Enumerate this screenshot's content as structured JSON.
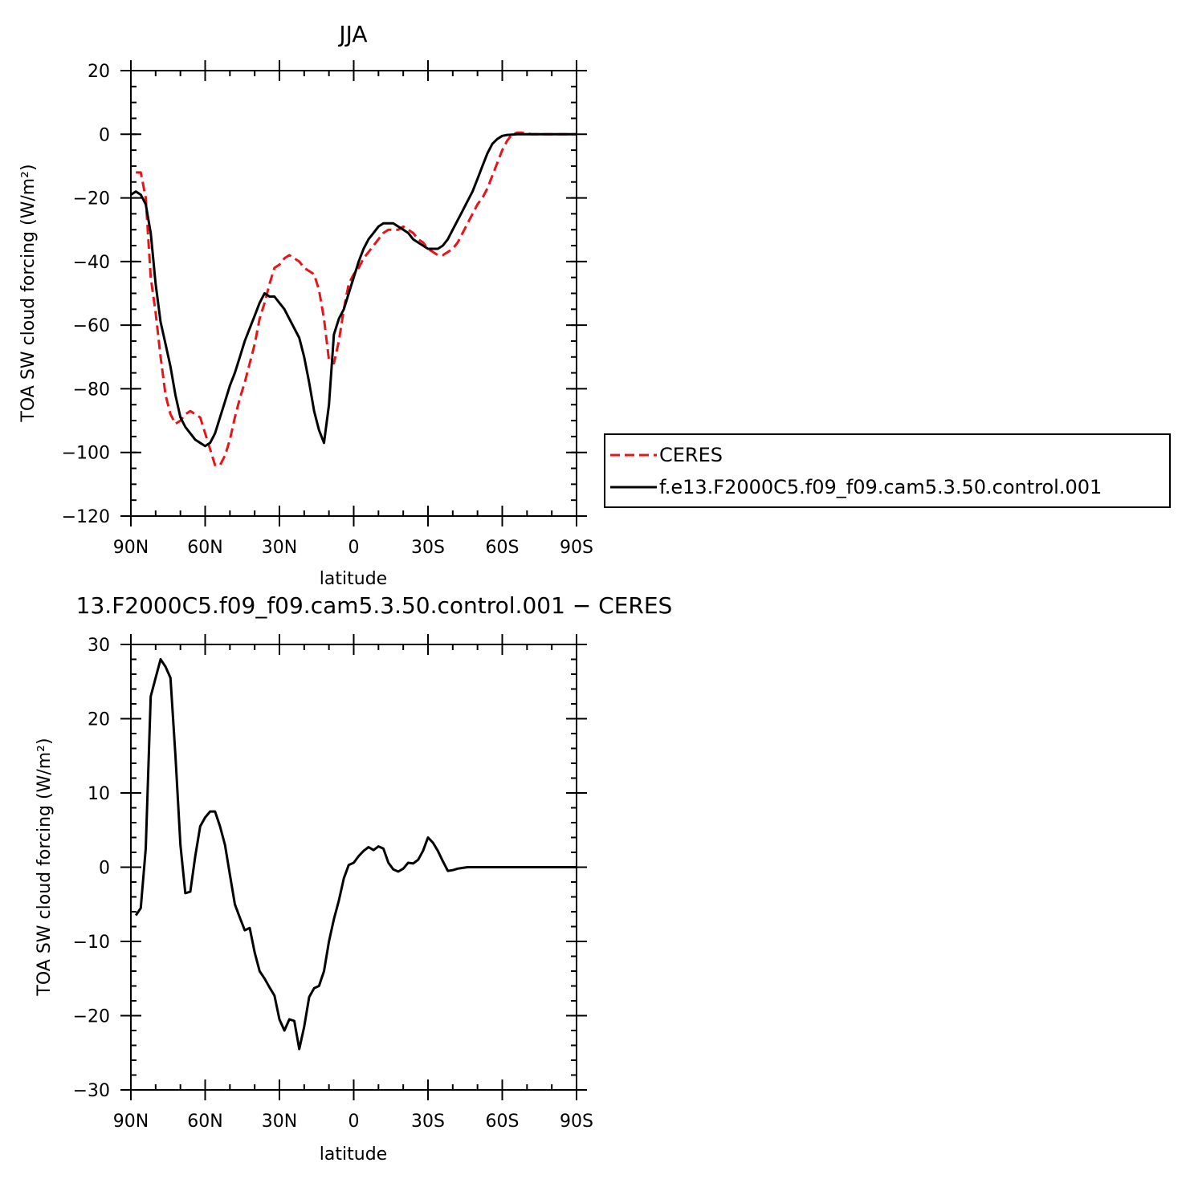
{
  "chart_data": [
    {
      "type": "line",
      "title": "JJA",
      "xlabel": "latitude",
      "ylabel": "TOA SW cloud forcing (W/m²)",
      "xlim": [
        -90,
        90
      ],
      "ylim": [
        -120,
        20
      ],
      "x_ticks": [
        -90,
        -60,
        -30,
        0,
        30,
        60,
        90
      ],
      "x_tick_labels": [
        "90N",
        "60N",
        "30N",
        "0",
        "30S",
        "60S",
        "90S"
      ],
      "y_ticks": [
        -120,
        -100,
        -80,
        -60,
        -40,
        -20,
        0,
        20
      ],
      "y_tick_labels": [
        "−120",
        "−100",
        "−80",
        "−60",
        "−40",
        "−20",
        "0",
        "20"
      ],
      "grid": false,
      "legend_position": "right",
      "series": [
        {
          "name": "CERES",
          "color": "#e8141a",
          "dash": "dashed",
          "x": [
            -88,
            -86,
            -84,
            -82,
            -80,
            -78,
            -76,
            -74,
            -72,
            -70,
            -68,
            -66,
            -64,
            -62,
            -60,
            -58,
            -56,
            -54,
            -52,
            -50,
            -48,
            -46,
            -44,
            -42,
            -40,
            -38,
            -36,
            -34,
            -32,
            -30,
            -28,
            -26,
            -24,
            -22,
            -20,
            -18,
            -16,
            -14,
            -12,
            -10,
            -8,
            -6,
            -4,
            -2,
            0,
            2,
            4,
            6,
            8,
            10,
            12,
            14,
            16,
            18,
            20,
            22,
            24,
            26,
            28,
            30,
            32,
            34,
            36,
            38,
            40,
            42,
            44,
            46,
            48,
            50,
            52,
            54,
            56,
            58,
            60,
            62,
            64,
            66,
            68,
            70,
            72,
            74,
            76,
            78,
            80,
            82,
            84,
            86,
            88,
            90
          ],
          "y": [
            -12,
            -12,
            -20,
            -45,
            -56,
            -70,
            -82,
            -88,
            -91,
            -90,
            -88,
            -87,
            -88,
            -89,
            -94,
            -99,
            -104,
            -104,
            -101,
            -96,
            -89,
            -83,
            -78,
            -72,
            -66,
            -58,
            -53,
            -47,
            -42,
            -41,
            -39,
            -38,
            -39,
            -40,
            -42,
            -43,
            -44,
            -49,
            -58,
            -71,
            -72,
            -65,
            -55,
            -47,
            -44,
            -42,
            -39,
            -37,
            -35,
            -33,
            -31,
            -30,
            -30,
            -30,
            -29,
            -30,
            -31,
            -33,
            -34,
            -36,
            -37,
            -38,
            -38,
            -37,
            -36,
            -34,
            -31,
            -28,
            -25,
            -22,
            -20,
            -17,
            -13,
            -9,
            -5,
            -2,
            0,
            0.5,
            0.5,
            0.3,
            0,
            0,
            0,
            0,
            0,
            0,
            0,
            0,
            0,
            0
          ]
        },
        {
          "name": "f.e13.F2000C5.f09_f09.cam5.3.50.control.001",
          "color": "#000000",
          "dash": "solid",
          "x": [
            -90,
            -88,
            -86,
            -84,
            -82,
            -80,
            -78,
            -76,
            -74,
            -72,
            -70,
            -68,
            -66,
            -64,
            -62,
            -60,
            -58,
            -56,
            -54,
            -52,
            -50,
            -48,
            -46,
            -44,
            -42,
            -40,
            -38,
            -36,
            -34,
            -32,
            -30,
            -28,
            -26,
            -24,
            -22,
            -20,
            -18,
            -16,
            -14,
            -12,
            -10,
            -8,
            -6,
            -4,
            -2,
            0,
            2,
            4,
            6,
            8,
            10,
            12,
            14,
            16,
            18,
            20,
            22,
            24,
            26,
            28,
            30,
            32,
            34,
            36,
            38,
            40,
            42,
            44,
            46,
            48,
            50,
            52,
            54,
            56,
            58,
            60,
            62,
            64,
            66,
            68,
            70,
            72,
            74,
            76,
            78,
            80,
            82,
            84,
            86,
            88,
            90
          ],
          "y": [
            -19,
            -18,
            -19,
            -22,
            -31,
            -47,
            -59,
            -66,
            -73,
            -82,
            -89,
            -92,
            -94,
            -96,
            -97,
            -98,
            -97,
            -94,
            -89,
            -84,
            -79,
            -75,
            -70,
            -65,
            -61,
            -57,
            -53,
            -50,
            -51,
            -51,
            -53,
            -55,
            -58,
            -61,
            -64,
            -70,
            -78,
            -87,
            -93,
            -97,
            -85,
            -63,
            -58,
            -55,
            -50,
            -45,
            -40,
            -36,
            -33,
            -31,
            -29,
            -28,
            -28,
            -28,
            -29,
            -30,
            -31,
            -33,
            -34,
            -35,
            -36,
            -36,
            -36,
            -35,
            -33,
            -30,
            -27,
            -24,
            -21,
            -18,
            -14,
            -10,
            -6,
            -3,
            -1.5,
            -0.5,
            -0.2,
            -0.1,
            0,
            0,
            0,
            0,
            0,
            0,
            0,
            0,
            0,
            0,
            0,
            0,
            0
          ]
        }
      ]
    },
    {
      "type": "line",
      "title": "13.F2000C5.f09_f09.cam5.3.50.control.001  −  CERES",
      "xlabel": "latitude",
      "ylabel": "TOA SW cloud forcing (W/m²)",
      "xlim": [
        -90,
        90
      ],
      "ylim": [
        -30,
        30
      ],
      "x_ticks": [
        -90,
        -60,
        -30,
        0,
        30,
        60,
        90
      ],
      "x_tick_labels": [
        "90N",
        "60N",
        "30N",
        "0",
        "30S",
        "60S",
        "90S"
      ],
      "y_ticks": [
        -30,
        -20,
        -10,
        0,
        10,
        20,
        30
      ],
      "y_tick_labels": [
        "−30",
        "−20",
        "−10",
        "0",
        "10",
        "20",
        "30"
      ],
      "grid": false,
      "series": [
        {
          "color": "#000000",
          "dash": "solid",
          "x": [
            -88,
            -86,
            -84,
            -82,
            -80,
            -78,
            -76,
            -74,
            -72,
            -70,
            -68,
            -66,
            -64,
            -62,
            -60,
            -58,
            -56,
            -54,
            -52,
            -50,
            -48,
            -46,
            -44,
            -42,
            -40,
            -38,
            -36,
            -34,
            -32,
            -30,
            -28,
            -26,
            -24,
            -22,
            -20,
            -18,
            -16,
            -14,
            -12,
            -10,
            -8,
            -6,
            -4,
            -2,
            0,
            2,
            4,
            6,
            8,
            10,
            12,
            14,
            16,
            18,
            20,
            22,
            24,
            26,
            28,
            30,
            32,
            34,
            36,
            38,
            40,
            42,
            44,
            46,
            48,
            50,
            52,
            54,
            56,
            58,
            60,
            62,
            64,
            66,
            68,
            70,
            72,
            74,
            76,
            78,
            80,
            82,
            84,
            86,
            88,
            90
          ],
          "y": [
            -6.5,
            -5.5,
            2.5,
            23,
            25.5,
            28,
            27,
            25.5,
            15,
            3,
            -3.5,
            -3.3,
            1.5,
            5.5,
            6.7,
            7.5,
            7.5,
            5.5,
            3,
            -1,
            -5,
            -6.8,
            -8.5,
            -8.2,
            -11.5,
            -14,
            -15,
            -16.2,
            -17.3,
            -20.5,
            -22,
            -20.5,
            -20.7,
            -24.5,
            -21.5,
            -17.5,
            -16.3,
            -16,
            -14,
            -10,
            -7,
            -4.5,
            -1.5,
            0.3,
            0.6,
            1.5,
            2.2,
            2.7,
            2.3,
            2.8,
            2.5,
            0.6,
            -0.3,
            -0.6,
            -0.2,
            0.6,
            0.5,
            1,
            2.2,
            4,
            3.3,
            2.2,
            0.8,
            -0.5,
            -0.4,
            -0.2,
            -0.1,
            0,
            0,
            0,
            0,
            0,
            0,
            0,
            0,
            0,
            0,
            0,
            0,
            0,
            0,
            0,
            0,
            0,
            0,
            0,
            0,
            0,
            0,
            0
          ]
        }
      ]
    }
  ]
}
